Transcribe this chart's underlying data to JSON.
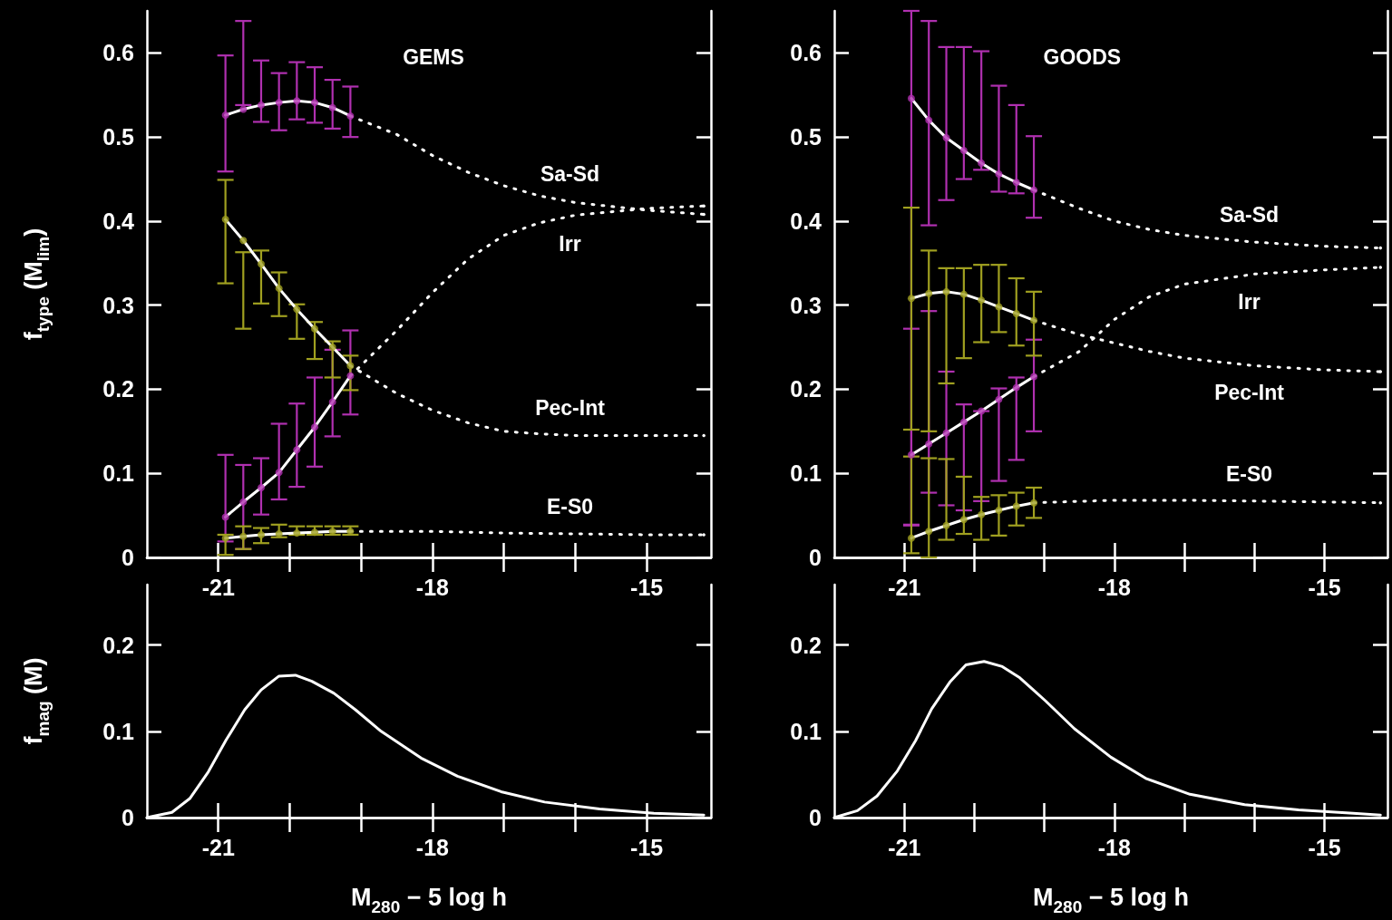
{
  "chart_data": [
    {
      "type": "line",
      "title": "GEMS",
      "ylabel": "f$_{type}$ (M$_{lim}$)",
      "xlim": [
        -22,
        -14.1
      ],
      "xticks": [
        -21,
        {
          "value": -20,
          "label": null
        },
        {
          "value": -19,
          "label": null
        },
        -18,
        {
          "value": -17,
          "label": null
        },
        {
          "value": -16,
          "label": null
        },
        -15
      ],
      "ylim": [
        0,
        0.65
      ],
      "yticks": [
        0,
        0.1,
        0.2,
        0.3,
        0.4,
        0.5,
        0.6
      ],
      "marker": "none",
      "grid": false,
      "series": [
        {
          "type": "scatter",
          "marker": "circle",
          "color": "#b030b0",
          "x": [
            -20.9,
            -20.65,
            -20.4,
            -20.15,
            -19.9,
            -19.65,
            -19.4,
            -19.15
          ],
          "values": [
            0.526,
            0.533,
            0.538,
            0.541,
            0.543,
            0.541,
            0.535,
            0.525
          ],
          "errors": [
            [
              0.459,
              0.597
            ],
            [
              0.538,
              0.638
            ],
            [
              0.518,
              0.591
            ],
            [
              0.508,
              0.576
            ],
            [
              0.521,
              0.589
            ],
            [
              0.517,
              0.583
            ],
            [
              0.51,
              0.568
            ],
            [
              0.5,
              0.56
            ]
          ]
        },
        {
          "type": "scatter",
          "marker": "circle",
          "color": "#b030b0",
          "x": [
            -20.9,
            -20.65,
            -20.4,
            -20.15,
            -19.9,
            -19.65,
            -19.4,
            -19.15
          ],
          "values": [
            0.048,
            0.066,
            0.083,
            0.101,
            0.128,
            0.155,
            0.185,
            0.216
          ],
          "errors": [
            [
              0.019,
              0.122
            ],
            [
              0.01,
              0.11
            ],
            [
              0.051,
              0.118
            ],
            [
              0.069,
              0.159
            ],
            [
              0.084,
              0.183
            ],
            [
              0.108,
              0.214
            ],
            [
              0.144,
              0.247
            ],
            [
              0.17,
              0.27
            ]
          ]
        },
        {
          "type": "scatter",
          "marker": "circle",
          "color": "#a0a020",
          "x": [
            -20.9,
            -20.65,
            -20.4,
            -20.15,
            -19.9,
            -19.65,
            -19.4,
            -19.15
          ],
          "values": [
            0.402,
            0.377,
            0.349,
            0.32,
            0.295,
            0.272,
            0.25,
            0.228
          ],
          "errors": [
            [
              0.326,
              0.449
            ],
            [
              0.272,
              0.363
            ],
            [
              0.302,
              0.365
            ],
            [
              0.287,
              0.339
            ],
            [
              0.26,
              0.301
            ],
            [
              0.236,
              0.28
            ],
            [
              0.214,
              0.257
            ],
            [
              0.199,
              0.24
            ]
          ]
        },
        {
          "type": "scatter",
          "marker": "circle",
          "color": "#a0a020",
          "x": [
            -20.9,
            -20.65,
            -20.4,
            -20.15,
            -19.9,
            -19.65,
            -19.4,
            -19.15
          ],
          "values": [
            0.023,
            0.025,
            0.027,
            0.028,
            0.029,
            0.03,
            0.031,
            0.031
          ],
          "errors": [
            [
              0.003,
              0.027
            ],
            [
              0.01,
              0.037
            ],
            [
              0.017,
              0.035
            ],
            [
              0.024,
              0.039
            ],
            [
              0.027,
              0.037
            ],
            [
              0.027,
              0.037
            ],
            [
              0.027,
              0.037
            ],
            [
              0.027,
              0.037
            ]
          ]
        },
        {
          "color": "#ffffff",
          "line_style": "solid",
          "x": [
            -20.9,
            -20.65,
            -20.4,
            -20.15,
            -19.9,
            -19.65,
            -19.4,
            -19.15
          ],
          "values": [
            0.526,
            0.533,
            0.538,
            0.541,
            0.543,
            0.541,
            0.535,
            0.525
          ]
        },
        {
          "color": "#ffffff",
          "line_style": "solid",
          "x": [
            -20.9,
            -20.65,
            -20.4,
            -20.15,
            -19.9,
            -19.65,
            -19.4,
            -19.15
          ],
          "values": [
            0.048,
            0.066,
            0.083,
            0.101,
            0.128,
            0.155,
            0.185,
            0.216
          ]
        },
        {
          "color": "#ffffff",
          "line_style": "solid",
          "x": [
            -20.9,
            -20.65,
            -20.4,
            -20.15,
            -19.9,
            -19.65,
            -19.4,
            -19.15
          ],
          "values": [
            0.402,
            0.377,
            0.349,
            0.32,
            0.295,
            0.272,
            0.25,
            0.228
          ]
        },
        {
          "color": "#ffffff",
          "line_style": "solid",
          "x": [
            -20.9,
            -20.65,
            -20.4,
            -20.15,
            -19.9,
            -19.65,
            -19.4,
            -19.15
          ],
          "values": [
            0.023,
            0.025,
            0.027,
            0.028,
            0.029,
            0.03,
            0.031,
            0.031
          ]
        },
        {
          "name": "Sa-Sd",
          "color": "#ffffff",
          "line_style": "dotted",
          "x": [
            -19.15,
            -18.5,
            -18,
            -17.5,
            -17,
            -16.5,
            -16,
            -15,
            -14.2
          ],
          "values": [
            0.525,
            0.503,
            0.478,
            0.458,
            0.442,
            0.43,
            0.422,
            0.413,
            0.408
          ]
        },
        {
          "name": "Irr",
          "color": "#ffffff",
          "line_style": "dotted",
          "x": [
            -19.15,
            -18.5,
            -18,
            -17.5,
            -17,
            -16.5,
            -16,
            -15,
            -14.2
          ],
          "values": [
            0.216,
            0.27,
            0.315,
            0.355,
            0.383,
            0.398,
            0.407,
            0.415,
            0.418
          ]
        },
        {
          "name": "Pec-Int",
          "color": "#ffffff",
          "line_style": "dotted",
          "x": [
            -19.15,
            -18.5,
            -18,
            -17.5,
            -17,
            -16.5,
            -16,
            -15,
            -14.2
          ],
          "values": [
            0.228,
            0.195,
            0.175,
            0.16,
            0.15,
            0.147,
            0.145,
            0.145,
            0.145
          ]
        },
        {
          "name": "E-S0",
          "color": "#ffffff",
          "line_style": "dotted",
          "x": [
            -19.15,
            -18,
            -17,
            -16,
            -15,
            -14.2
          ],
          "values": [
            0.031,
            0.031,
            0.029,
            0.028,
            0.027,
            0.027
          ]
        }
      ]
    },
    {
      "type": "line",
      "xlabel": "M$_{280}$ − 5 log h",
      "ylabel": "f$_{mag}$ (M)",
      "xlim": [
        -22,
        -14.1
      ],
      "xticks": [
        -21,
        {
          "value": -20,
          "label": null
        },
        {
          "value": -19,
          "label": null
        },
        -18,
        {
          "value": -17,
          "label": null
        },
        {
          "value": -16,
          "label": null
        },
        -15
      ],
      "ylim": [
        0,
        0.27
      ],
      "yticks": [
        0,
        0.1,
        0.2
      ],
      "marker": "none",
      "grid": false,
      "series": [
        {
          "color": "#ffffff",
          "line_style": "solid",
          "x": [
            -22,
            -21.65,
            -21.4,
            -21.14,
            -20.89,
            -20.63,
            -20.4,
            -20.15,
            -19.92,
            -19.69,
            -19.38,
            -19.08,
            -18.72,
            -18.16,
            -17.65,
            -17.04,
            -16.43,
            -15.66,
            -14.9,
            -14.2
          ],
          "values": [
            0,
            0.006,
            0.022,
            0.053,
            0.09,
            0.125,
            0.148,
            0.164,
            0.165,
            0.158,
            0.144,
            0.125,
            0.1,
            0.069,
            0.048,
            0.03,
            0.018,
            0.01,
            0.005,
            0.003
          ]
        }
      ]
    },
    {
      "type": "line",
      "title": "GOODS",
      "xlim": [
        -22,
        -14.1
      ],
      "xticks": [
        -21,
        {
          "value": -20,
          "label": null
        },
        {
          "value": -19,
          "label": null
        },
        -18,
        {
          "value": -17,
          "label": null
        },
        {
          "value": -16,
          "label": null
        },
        -15
      ],
      "ylim": [
        0,
        0.65
      ],
      "yticks": [
        0,
        0.1,
        0.2,
        0.3,
        0.4,
        0.5,
        0.6
      ],
      "marker": "none",
      "grid": false,
      "series": [
        {
          "type": "scatter",
          "marker": "circle",
          "color": "#b030b0",
          "x": [
            -20.9,
            -20.65,
            -20.4,
            -20.15,
            -19.9,
            -19.65,
            -19.4,
            -19.15
          ],
          "values": [
            0.546,
            0.52,
            0.499,
            0.484,
            0.469,
            0.456,
            0.446,
            0.437
          ],
          "errors": [
            [
              0.039,
              0.65
            ],
            [
              0.395,
              0.638
            ],
            [
              0.425,
              0.607
            ],
            [
              0.45,
              0.607
            ],
            [
              0.461,
              0.602
            ],
            [
              0.435,
              0.561
            ],
            [
              0.433,
              0.538
            ],
            [
              0.404,
              0.501
            ]
          ]
        },
        {
          "type": "scatter",
          "marker": "circle",
          "color": "#b030b0",
          "x": [
            -20.9,
            -20.65,
            -20.4,
            -20.15,
            -19.9,
            -19.65,
            -19.4,
            -19.15
          ],
          "values": [
            0.122,
            0.135,
            0.148,
            0.161,
            0.174,
            0.188,
            0.202,
            0.215
          ],
          "errors": [
            [
              0.038,
              0.272
            ],
            [
              0.077,
              0.293
            ],
            [
              0.062,
              0.221
            ],
            [
              0.056,
              0.182
            ],
            [
              0.067,
              0.174
            ],
            [
              0.091,
              0.201
            ],
            [
              0.116,
              0.214
            ],
            [
              0.15,
              0.259
            ]
          ]
        },
        {
          "type": "scatter",
          "marker": "circle",
          "color": "#a0a020",
          "x": [
            -20.9,
            -20.65,
            -20.4,
            -20.15,
            -19.9,
            -19.65,
            -19.4,
            -19.15
          ],
          "values": [
            0.308,
            0.314,
            0.316,
            0.313,
            0.306,
            0.298,
            0.29,
            0.282
          ],
          "errors": [
            [
              0.152,
              0.416
            ],
            [
              0.15,
              0.365
            ],
            [
              0.207,
              0.344
            ],
            [
              0.237,
              0.344
            ],
            [
              0.256,
              0.348
            ],
            [
              0.268,
              0.348
            ],
            [
              0.252,
              0.332
            ],
            [
              0.24,
              0.316
            ]
          ]
        },
        {
          "type": "scatter",
          "marker": "circle",
          "color": "#a0a020",
          "x": [
            -20.9,
            -20.65,
            -20.4,
            -20.15,
            -19.9,
            -19.65,
            -19.4,
            -19.15
          ],
          "values": [
            0.023,
            0.031,
            0.038,
            0.045,
            0.051,
            0.056,
            0.061,
            0.065
          ],
          "errors": [
            [
              0.005,
              0.12
            ],
            [
              0,
              0.118
            ],
            [
              0.021,
              0.117
            ],
            [
              0.028,
              0.096
            ],
            [
              0.021,
              0.072
            ],
            [
              0.026,
              0.074
            ],
            [
              0.038,
              0.077
            ],
            [
              0.047,
              0.083
            ]
          ]
        },
        {
          "color": "#ffffff",
          "line_style": "solid",
          "x": [
            -20.9,
            -20.65,
            -20.4,
            -20.15,
            -19.9,
            -19.65,
            -19.4,
            -19.15
          ],
          "values": [
            0.546,
            0.52,
            0.499,
            0.484,
            0.469,
            0.456,
            0.446,
            0.437
          ]
        },
        {
          "color": "#ffffff",
          "line_style": "solid",
          "x": [
            -20.9,
            -20.65,
            -20.4,
            -20.15,
            -19.9,
            -19.65,
            -19.4,
            -19.15
          ],
          "values": [
            0.122,
            0.135,
            0.148,
            0.161,
            0.174,
            0.188,
            0.202,
            0.215
          ]
        },
        {
          "color": "#ffffff",
          "line_style": "solid",
          "x": [
            -20.9,
            -20.65,
            -20.4,
            -20.15,
            -19.9,
            -19.65,
            -19.4,
            -19.15
          ],
          "values": [
            0.308,
            0.314,
            0.316,
            0.313,
            0.306,
            0.298,
            0.29,
            0.282
          ]
        },
        {
          "color": "#ffffff",
          "line_style": "solid",
          "x": [
            -20.9,
            -20.65,
            -20.4,
            -20.15,
            -19.9,
            -19.65,
            -19.4,
            -19.15
          ],
          "values": [
            0.023,
            0.031,
            0.038,
            0.045,
            0.051,
            0.056,
            0.061,
            0.065
          ]
        },
        {
          "name": "Sa-Sd",
          "color": "#ffffff",
          "line_style": "dotted",
          "x": [
            -19.15,
            -18.5,
            -18,
            -17.5,
            -17,
            -16,
            -15,
            -14.2
          ],
          "values": [
            0.437,
            0.415,
            0.4,
            0.39,
            0.383,
            0.375,
            0.37,
            0.368
          ]
        },
        {
          "name": "Irr",
          "color": "#ffffff",
          "line_style": "dotted",
          "x": [
            -19.15,
            -18.5,
            -18,
            -17.5,
            -17,
            -16,
            -15,
            -14.2
          ],
          "values": [
            0.215,
            0.245,
            0.283,
            0.31,
            0.325,
            0.337,
            0.342,
            0.345
          ]
        },
        {
          "name": "Pec-Int",
          "color": "#ffffff",
          "line_style": "dotted",
          "x": [
            -19.15,
            -18.5,
            -18,
            -17.5,
            -17,
            -16,
            -15,
            -14.2
          ],
          "values": [
            0.282,
            0.265,
            0.255,
            0.245,
            0.237,
            0.228,
            0.223,
            0.221
          ]
        },
        {
          "name": "E-S0",
          "color": "#ffffff",
          "line_style": "dotted",
          "x": [
            -19.15,
            -18,
            -17,
            -16,
            -15,
            -14.2
          ],
          "values": [
            0.065,
            0.068,
            0.068,
            0.067,
            0.066,
            0.065
          ]
        }
      ]
    },
    {
      "type": "line",
      "xlabel": "M$_{280}$ − 5 log h",
      "xlim": [
        -22,
        -14.1
      ],
      "xticks": [
        -21,
        {
          "value": -20,
          "label": null
        },
        {
          "value": -19,
          "label": null
        },
        -18,
        {
          "value": -17,
          "label": null
        },
        {
          "value": -16,
          "label": null
        },
        -15
      ],
      "ylim": [
        0,
        0.27
      ],
      "yticks": [
        0,
        0.1,
        0.2
      ],
      "marker": "none",
      "grid": false,
      "series": [
        {
          "color": "#ffffff",
          "line_style": "solid",
          "x": [
            -22,
            -21.67,
            -21.39,
            -21.1,
            -20.84,
            -20.61,
            -20.35,
            -20.12,
            -19.86,
            -19.6,
            -19.35,
            -18.98,
            -18.57,
            -18.05,
            -17.54,
            -16.92,
            -16.14,
            -15.37,
            -14.59,
            -14.2
          ],
          "values": [
            0,
            0.008,
            0.025,
            0.054,
            0.089,
            0.126,
            0.157,
            0.177,
            0.181,
            0.175,
            0.162,
            0.135,
            0.103,
            0.07,
            0.045,
            0.027,
            0.015,
            0.009,
            0.005,
            0.003
          ]
        }
      ]
    }
  ]
}
